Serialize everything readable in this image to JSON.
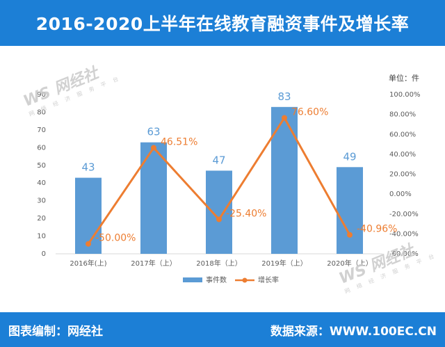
{
  "title": "2016-2020上半年在线教育融资事件及增长率",
  "unit_label": "单位：件",
  "footer": {
    "left": "图表编制：网经社",
    "right": "数据来源：WWW.100EC.CN"
  },
  "watermark": {
    "text": "网经社",
    "sub": "网 络 经 济 服 务 平 台",
    "url": "WWW.100EC.CN"
  },
  "colors": {
    "header_bg": "#1c7fd6",
    "bar": "#5b9bd5",
    "line": "#ed7d31",
    "axis_text": "#595959"
  },
  "chart_data": {
    "type": "bar",
    "categories": [
      "2016年(上)",
      "2017年（上）",
      "2018年（上）",
      "2019年（上）",
      "2020年（上）"
    ],
    "series": [
      {
        "name": "事件数",
        "type": "bar",
        "axis": "left",
        "values": [
          43,
          63,
          47,
          83,
          49
        ]
      },
      {
        "name": "增长率",
        "type": "line",
        "axis": "right",
        "values": [
          -50.0,
          46.51,
          -25.4,
          76.6,
          -40.96
        ]
      }
    ],
    "bar_labels": [
      "43",
      "63",
      "47",
      "83",
      "49"
    ],
    "line_labels": [
      "-50.00%",
      "46.51%",
      "-25.40%",
      "76.60%",
      "-40.96%"
    ],
    "ylim_left": [
      0,
      90
    ],
    "yticks_left": [
      "0",
      "10",
      "20",
      "30",
      "40",
      "50",
      "60",
      "70",
      "80",
      "90"
    ],
    "ylim_right": [
      -60,
      100
    ],
    "yticks_right": [
      "-60.00%",
      "-40.00%",
      "-20.00%",
      "0.00%",
      "20.00%",
      "40.00%",
      "60.00%",
      "80.00%",
      "100.00%"
    ],
    "legend_position": "bottom",
    "grid": false
  }
}
